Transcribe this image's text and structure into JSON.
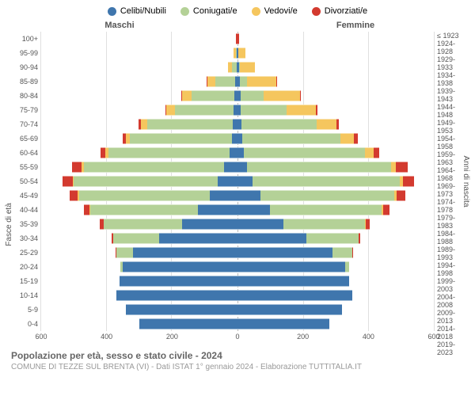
{
  "legend": [
    {
      "label": "Celibi/Nubili",
      "color": "#3f76ad"
    },
    {
      "label": "Coniugati/e",
      "color": "#b4d197"
    },
    {
      "label": "Vedovi/e",
      "color": "#f5c65e"
    },
    {
      "label": "Divorziati/e",
      "color": "#d33a2f"
    }
  ],
  "header_left": "Maschi",
  "header_right": "Femmine",
  "yaxis_left_label": "Fasce di età",
  "yaxis_right_label": "Anni di nascita",
  "age_groups": [
    "100+",
    "95-99",
    "90-94",
    "85-89",
    "80-84",
    "75-79",
    "70-74",
    "65-69",
    "60-64",
    "55-59",
    "50-54",
    "45-49",
    "40-44",
    "35-39",
    "30-34",
    "25-29",
    "20-24",
    "15-19",
    "10-14",
    "5-9",
    "0-4"
  ],
  "birth_years": [
    "≤ 1923",
    "1924-1928",
    "1929-1933",
    "1934-1938",
    "1939-1943",
    "1944-1948",
    "1949-1953",
    "1954-1958",
    "1959-1963",
    "1964-1968",
    "1969-1973",
    "1974-1978",
    "1979-1983",
    "1984-1988",
    "1989-1993",
    "1994-1998",
    "1999-2003",
    "2004-2008",
    "2009-2013",
    "2014-2018",
    "2019-2023"
  ],
  "xmax": 600,
  "xticks": [
    600,
    400,
    200,
    0,
    200,
    400,
    600
  ],
  "male": [
    {
      "cel": 0,
      "con": 0,
      "ved": 0,
      "div": 4
    },
    {
      "cel": 2,
      "con": 3,
      "ved": 6,
      "div": 0
    },
    {
      "cel": 3,
      "con": 15,
      "ved": 12,
      "div": 0
    },
    {
      "cel": 8,
      "con": 60,
      "ved": 25,
      "div": 2
    },
    {
      "cel": 10,
      "con": 130,
      "ved": 30,
      "div": 3
    },
    {
      "cel": 12,
      "con": 180,
      "ved": 25,
      "div": 4
    },
    {
      "cel": 15,
      "con": 260,
      "ved": 20,
      "div": 8
    },
    {
      "cel": 18,
      "con": 310,
      "ved": 12,
      "div": 10
    },
    {
      "cel": 25,
      "con": 370,
      "ved": 8,
      "div": 15
    },
    {
      "cel": 40,
      "con": 430,
      "ved": 6,
      "div": 30
    },
    {
      "cel": 60,
      "con": 440,
      "ved": 4,
      "div": 30
    },
    {
      "cel": 85,
      "con": 400,
      "ved": 3,
      "div": 25
    },
    {
      "cel": 120,
      "con": 330,
      "ved": 2,
      "div": 18
    },
    {
      "cel": 170,
      "con": 240,
      "ved": 0,
      "div": 10
    },
    {
      "cel": 240,
      "con": 140,
      "ved": 0,
      "div": 5
    },
    {
      "cel": 320,
      "con": 50,
      "ved": 0,
      "div": 2
    },
    {
      "cel": 350,
      "con": 8,
      "ved": 0,
      "div": 0
    },
    {
      "cel": 360,
      "con": 0,
      "ved": 0,
      "div": 0
    },
    {
      "cel": 370,
      "con": 0,
      "ved": 0,
      "div": 0
    },
    {
      "cel": 340,
      "con": 0,
      "ved": 0,
      "div": 0
    },
    {
      "cel": 300,
      "con": 0,
      "ved": 0,
      "div": 0
    }
  ],
  "female": [
    {
      "cel": 0,
      "con": 0,
      "ved": 0,
      "div": 6
    },
    {
      "cel": 2,
      "con": 1,
      "ved": 22,
      "div": 0
    },
    {
      "cel": 4,
      "con": 4,
      "ved": 45,
      "div": 0
    },
    {
      "cel": 8,
      "con": 20,
      "ved": 90,
      "div": 2
    },
    {
      "cel": 10,
      "con": 70,
      "ved": 110,
      "div": 3
    },
    {
      "cel": 10,
      "con": 140,
      "ved": 90,
      "div": 4
    },
    {
      "cel": 12,
      "con": 230,
      "ved": 60,
      "div": 8
    },
    {
      "cel": 15,
      "con": 300,
      "ved": 40,
      "div": 12
    },
    {
      "cel": 20,
      "con": 370,
      "ved": 25,
      "div": 18
    },
    {
      "cel": 30,
      "con": 440,
      "ved": 15,
      "div": 35
    },
    {
      "cel": 45,
      "con": 450,
      "ved": 10,
      "div": 35
    },
    {
      "cel": 70,
      "con": 410,
      "ved": 6,
      "div": 28
    },
    {
      "cel": 100,
      "con": 340,
      "ved": 4,
      "div": 20
    },
    {
      "cel": 140,
      "con": 250,
      "ved": 2,
      "div": 12
    },
    {
      "cel": 210,
      "con": 160,
      "ved": 0,
      "div": 6
    },
    {
      "cel": 290,
      "con": 60,
      "ved": 0,
      "div": 3
    },
    {
      "cel": 330,
      "con": 10,
      "ved": 0,
      "div": 0
    },
    {
      "cel": 340,
      "con": 0,
      "ved": 0,
      "div": 0
    },
    {
      "cel": 350,
      "con": 0,
      "ved": 0,
      "div": 0
    },
    {
      "cel": 320,
      "con": 0,
      "ved": 0,
      "div": 0
    },
    {
      "cel": 280,
      "con": 0,
      "ved": 0,
      "div": 0
    }
  ],
  "title": "Popolazione per età, sesso e stato civile - 2024",
  "subtitle": "COMUNE DI TEZZE SUL BRENTA (VI) - Dati ISTAT 1° gennaio 2024 - Elaborazione TUTTITALIA.IT",
  "colors": {
    "cel": "#3f76ad",
    "con": "#b4d197",
    "ved": "#f5c65e",
    "div": "#d33a2f",
    "grid": "#e0e0e0",
    "bg": "#ffffff"
  }
}
